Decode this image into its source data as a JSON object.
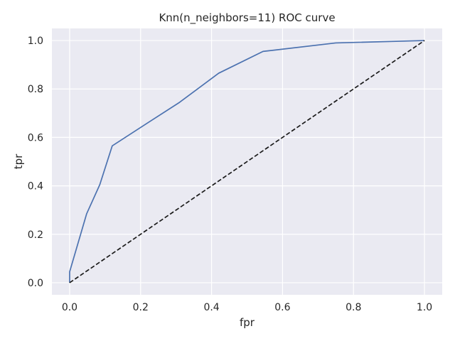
{
  "chart_data": {
    "type": "line",
    "title": "Knn(n_neighbors=11) ROC curve",
    "xlabel": "fpr",
    "ylabel": "tpr",
    "xlim": [
      -0.05,
      1.05
    ],
    "ylim": [
      -0.05,
      1.05
    ],
    "xticks": [
      "0.0",
      "0.2",
      "0.4",
      "0.6",
      "0.8",
      "1.0"
    ],
    "yticks": [
      "0.0",
      "0.2",
      "0.4",
      "0.6",
      "0.8",
      "1.0"
    ],
    "grid": true,
    "series": [
      {
        "style": "solid",
        "color": "#4c72b0",
        "x": [
          0.0,
          0.0,
          0.048,
          0.085,
          0.12,
          0.22,
          0.31,
          0.42,
          0.545,
          0.75,
          1.0
        ],
        "y": [
          0.0,
          0.045,
          0.285,
          0.405,
          0.565,
          0.66,
          0.745,
          0.865,
          0.955,
          0.99,
          1.0
        ]
      },
      {
        "style": "dashed",
        "color": "#1a1a1a",
        "x": [
          0.0,
          1.0
        ],
        "y": [
          0.0,
          1.0
        ]
      }
    ],
    "colors": {
      "background": "#eaeaf2",
      "grid": "#ffffff",
      "text": "#262626"
    }
  }
}
